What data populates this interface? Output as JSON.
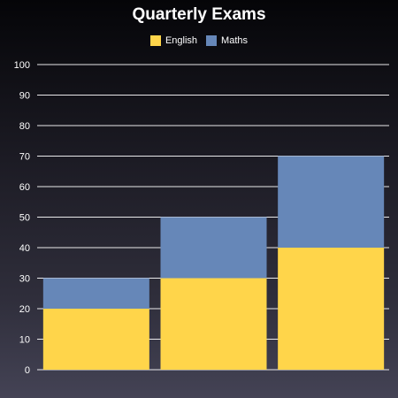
{
  "chart_data": {
    "type": "bar",
    "stacked": true,
    "title": "Quarterly Exams",
    "categories": [
      "",
      "",
      ""
    ],
    "series": [
      {
        "name": "English",
        "values": [
          20,
          30,
          40
        ],
        "color": "#ffd54a"
      },
      {
        "name": "Maths",
        "values": [
          10,
          20,
          30
        ],
        "color": "#6687b8"
      }
    ],
    "ylim": [
      0,
      100
    ],
    "yticks": [
      "0",
      "10",
      "20",
      "30",
      "40",
      "50",
      "60",
      "70",
      "80",
      "90",
      "100"
    ],
    "grid": true,
    "grid_color": "#ffffff",
    "legend_position": "top-center",
    "xlabel": "",
    "ylabel": ""
  }
}
